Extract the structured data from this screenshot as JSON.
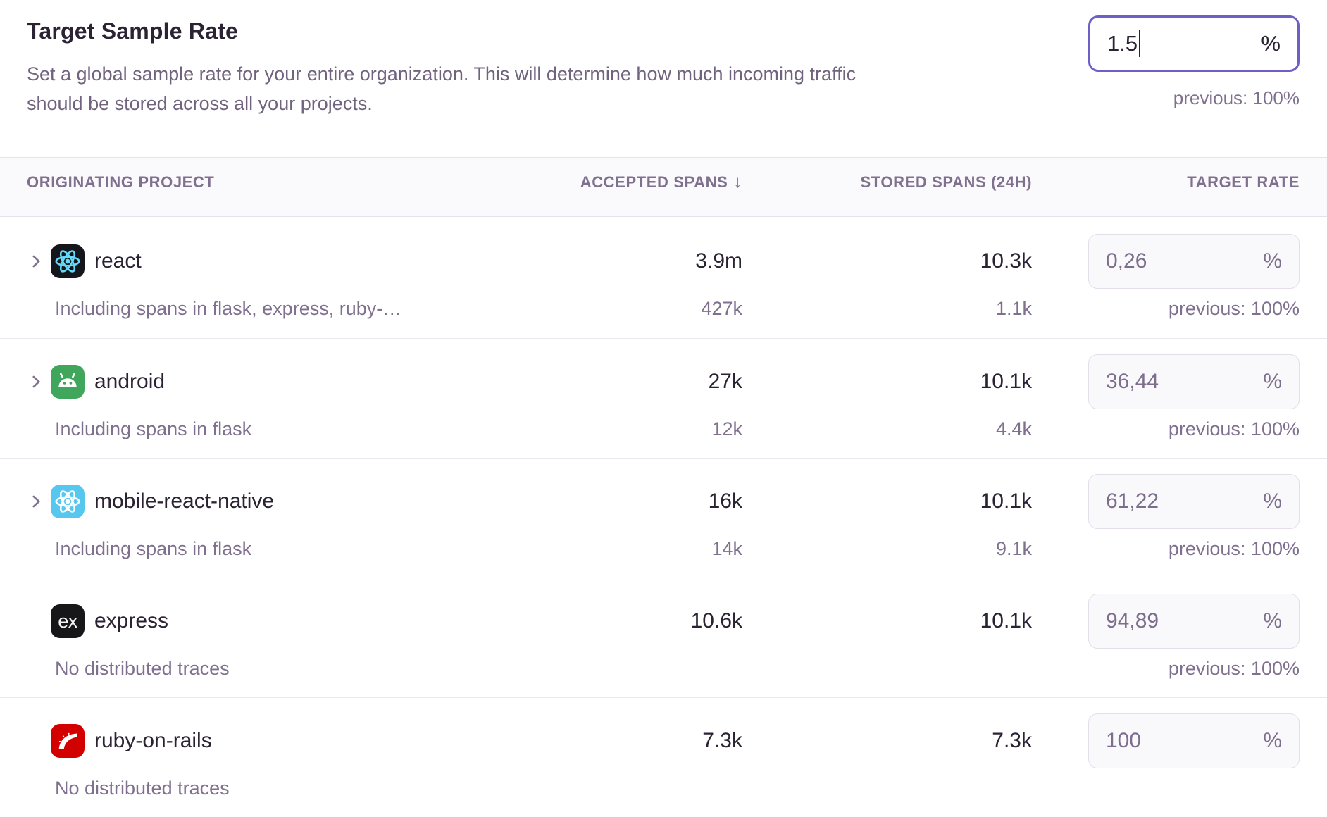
{
  "colors": {
    "accent_purple": "#6c5fc7",
    "text_dark": "#2b2233",
    "text_muted": "#80708f",
    "react_logo": "#61dafb",
    "react_tile": "#14161b",
    "android_tile": "#3fa65b",
    "react_native_tile": "#56c8ef",
    "express_tile": "#17171a",
    "rails_tile": "#d30000"
  },
  "header": {
    "title": "Target Sample Rate",
    "description_lines": [
      "Set a global sample rate for your entire organization. This will determine how much incoming traffic",
      "should be stored across all your projects."
    ],
    "input": {
      "value": "1.5",
      "unit": "%"
    },
    "previous": "previous: 100%"
  },
  "table": {
    "columns": {
      "project": "ORIGINATING PROJECT",
      "accepted": "ACCEPTED SPANS",
      "sort_icon": "↓",
      "stored": "STORED SPANS (24H)",
      "rate": "TARGET RATE"
    },
    "rows": [
      {
        "name": "react",
        "platform": "react",
        "expandable": true,
        "accepted": "3.9m",
        "stored": "10.3k",
        "rate": "0,26",
        "unit": "%",
        "sub_label": "Including spans in flask, express, ruby-…",
        "sub_accepted": "427k",
        "sub_stored": "1.1k",
        "previous": "previous: 100%"
      },
      {
        "name": "android",
        "platform": "android",
        "expandable": true,
        "accepted": "27k",
        "stored": "10.1k",
        "rate": "36,44",
        "unit": "%",
        "sub_label": "Including spans in flask",
        "sub_accepted": "12k",
        "sub_stored": "4.4k",
        "previous": "previous: 100%"
      },
      {
        "name": "mobile-react-native",
        "platform": "react-native",
        "expandable": true,
        "accepted": "16k",
        "stored": "10.1k",
        "rate": "61,22",
        "unit": "%",
        "sub_label": "Including spans in flask",
        "sub_accepted": "14k",
        "sub_stored": "9.1k",
        "previous": "previous: 100%"
      },
      {
        "name": "express",
        "platform": "express",
        "expandable": false,
        "accepted": "10.6k",
        "stored": "10.1k",
        "rate": "94,89",
        "unit": "%",
        "sub_label": "No distributed traces",
        "sub_accepted": "",
        "sub_stored": "",
        "previous": "previous: 100%"
      },
      {
        "name": "ruby-on-rails",
        "platform": "rails",
        "expandable": false,
        "accepted": "7.3k",
        "stored": "7.3k",
        "rate": "100",
        "unit": "%",
        "sub_label": "No distributed traces",
        "sub_accepted": "",
        "sub_stored": "",
        "previous": ""
      }
    ]
  }
}
